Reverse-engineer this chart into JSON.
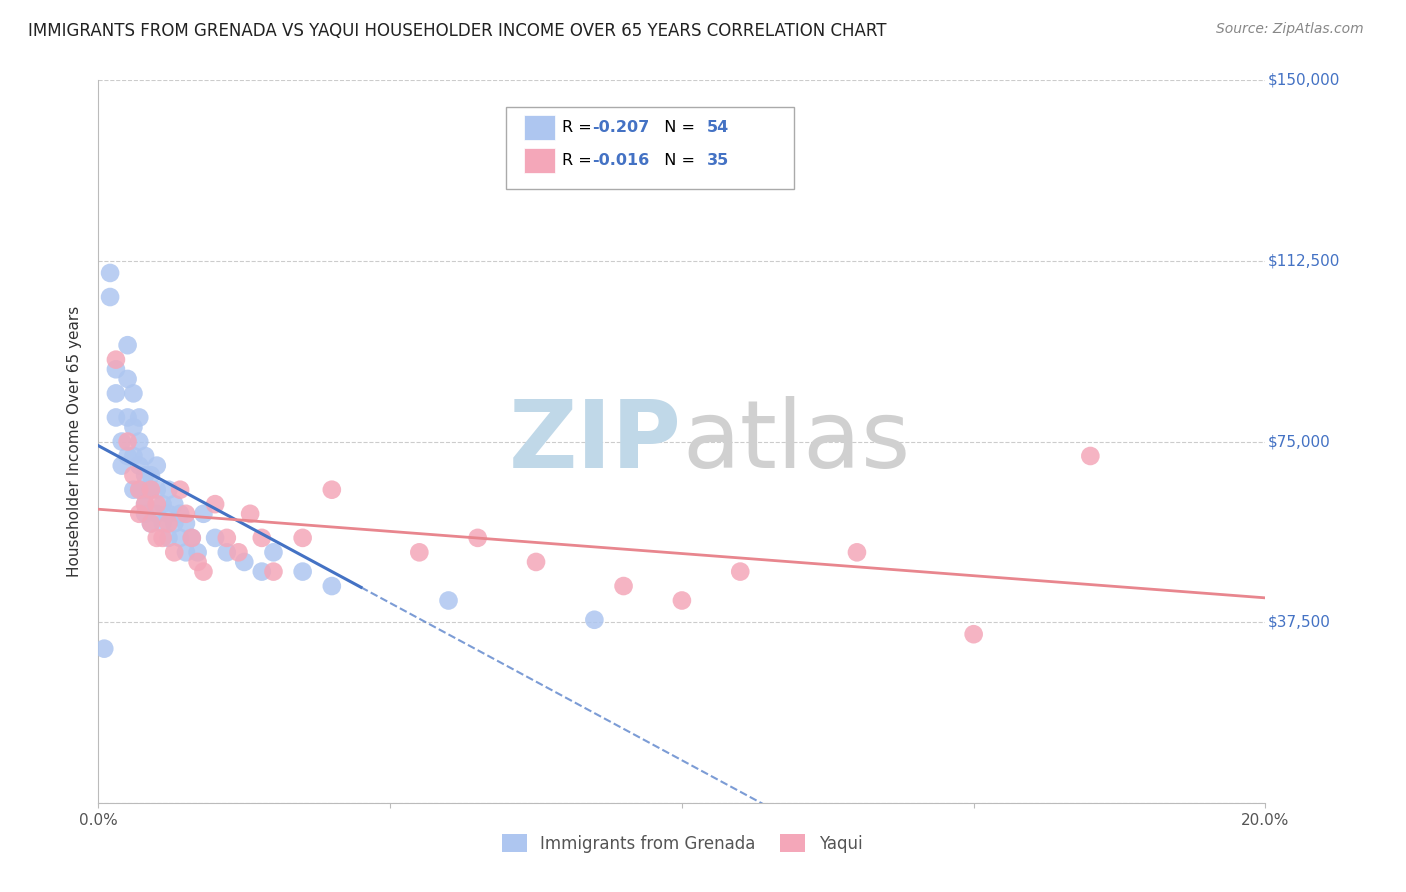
{
  "title": "IMMIGRANTS FROM GRENADA VS YAQUI HOUSEHOLDER INCOME OVER 65 YEARS CORRELATION CHART",
  "source": "Source: ZipAtlas.com",
  "ylabel": "Householder Income Over 65 years",
  "xlim": [
    0.0,
    0.2
  ],
  "ylim": [
    0,
    150000
  ],
  "yticks": [
    0,
    37500,
    75000,
    112500,
    150000
  ],
  "ytick_labels_right": [
    "",
    "$37,500",
    "$75,000",
    "$112,500",
    "$150,000"
  ],
  "xticks": [
    0.0,
    0.05,
    0.1,
    0.15,
    0.2
  ],
  "xtick_labels": [
    "0.0%",
    "",
    "",
    "",
    "20.0%"
  ],
  "legend_entries": [
    {
      "label": "R = -0.207  N = 54",
      "color": "#aec6f0"
    },
    {
      "label": "R = -0.016  N = 35",
      "color": "#f4a7b9"
    }
  ],
  "bottom_legend": [
    {
      "label": "Immigrants from Grenada",
      "color": "#aec6f0"
    },
    {
      "label": "Yaqui",
      "color": "#f4a7b9"
    }
  ],
  "watermark": "ZIPatlas",
  "watermark_color": "#c8dff0",
  "grenada_x": [
    0.001,
    0.002,
    0.002,
    0.003,
    0.003,
    0.003,
    0.004,
    0.004,
    0.005,
    0.005,
    0.005,
    0.005,
    0.006,
    0.006,
    0.006,
    0.006,
    0.007,
    0.007,
    0.007,
    0.007,
    0.008,
    0.008,
    0.008,
    0.008,
    0.008,
    0.009,
    0.009,
    0.009,
    0.01,
    0.01,
    0.01,
    0.011,
    0.011,
    0.012,
    0.012,
    0.012,
    0.013,
    0.013,
    0.014,
    0.014,
    0.015,
    0.015,
    0.016,
    0.017,
    0.018,
    0.02,
    0.022,
    0.025,
    0.028,
    0.03,
    0.035,
    0.04,
    0.06,
    0.085
  ],
  "grenada_y": [
    32000,
    110000,
    105000,
    85000,
    80000,
    90000,
    75000,
    70000,
    95000,
    88000,
    80000,
    72000,
    85000,
    78000,
    72000,
    65000,
    80000,
    75000,
    70000,
    65000,
    72000,
    68000,
    65000,
    62000,
    60000,
    68000,
    65000,
    58000,
    70000,
    65000,
    60000,
    62000,
    58000,
    65000,
    60000,
    55000,
    62000,
    58000,
    60000,
    55000,
    58000,
    52000,
    55000,
    52000,
    60000,
    55000,
    52000,
    50000,
    48000,
    52000,
    48000,
    45000,
    42000,
    38000
  ],
  "yaqui_x": [
    0.003,
    0.005,
    0.006,
    0.007,
    0.007,
    0.008,
    0.009,
    0.009,
    0.01,
    0.01,
    0.011,
    0.012,
    0.013,
    0.014,
    0.015,
    0.016,
    0.017,
    0.018,
    0.02,
    0.022,
    0.024,
    0.026,
    0.028,
    0.03,
    0.035,
    0.04,
    0.055,
    0.065,
    0.075,
    0.09,
    0.1,
    0.11,
    0.13,
    0.15,
    0.17
  ],
  "yaqui_y": [
    92000,
    75000,
    68000,
    65000,
    60000,
    62000,
    65000,
    58000,
    62000,
    55000,
    55000,
    58000,
    52000,
    65000,
    60000,
    55000,
    50000,
    48000,
    62000,
    55000,
    52000,
    60000,
    55000,
    48000,
    55000,
    65000,
    52000,
    55000,
    50000,
    45000,
    42000,
    48000,
    52000,
    35000,
    72000
  ],
  "trend_grenada_color": "#4472c4",
  "trend_yaqui_color": "#e8868e",
  "background_color": "#ffffff",
  "grid_color": "#cccccc",
  "axis_color": "#bbbbbb",
  "r_color": "#4472c4",
  "title_color": "#222222",
  "ylabel_color": "#333333",
  "source_color": "#888888",
  "tick_label_color": "#4472c4"
}
